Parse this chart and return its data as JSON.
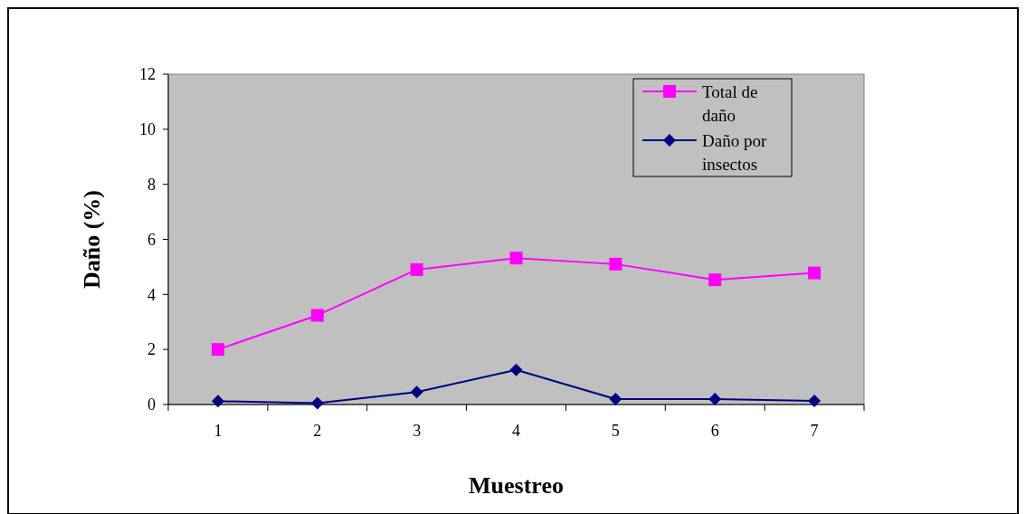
{
  "chart_data": {
    "type": "line",
    "xlabel": "Muestreo",
    "ylabel": "Daño (%)",
    "categories": [
      "1",
      "2",
      "3",
      "4",
      "5",
      "6",
      "7"
    ],
    "series": [
      {
        "name": "Total de daño",
        "color": "#ff00ff",
        "marker": "square",
        "values": [
          2.0,
          3.24,
          4.9,
          5.32,
          5.1,
          4.53,
          4.78
        ]
      },
      {
        "name": "Daño por insectos",
        "color": "#000080",
        "marker": "diamond",
        "values": [
          0.12,
          0.05,
          0.45,
          1.26,
          0.2,
          0.2,
          0.13
        ]
      }
    ],
    "ylim": [
      0,
      12
    ],
    "yticks": [
      0,
      2,
      4,
      6,
      8,
      10,
      12
    ],
    "grid": false,
    "legend": "top right"
  }
}
